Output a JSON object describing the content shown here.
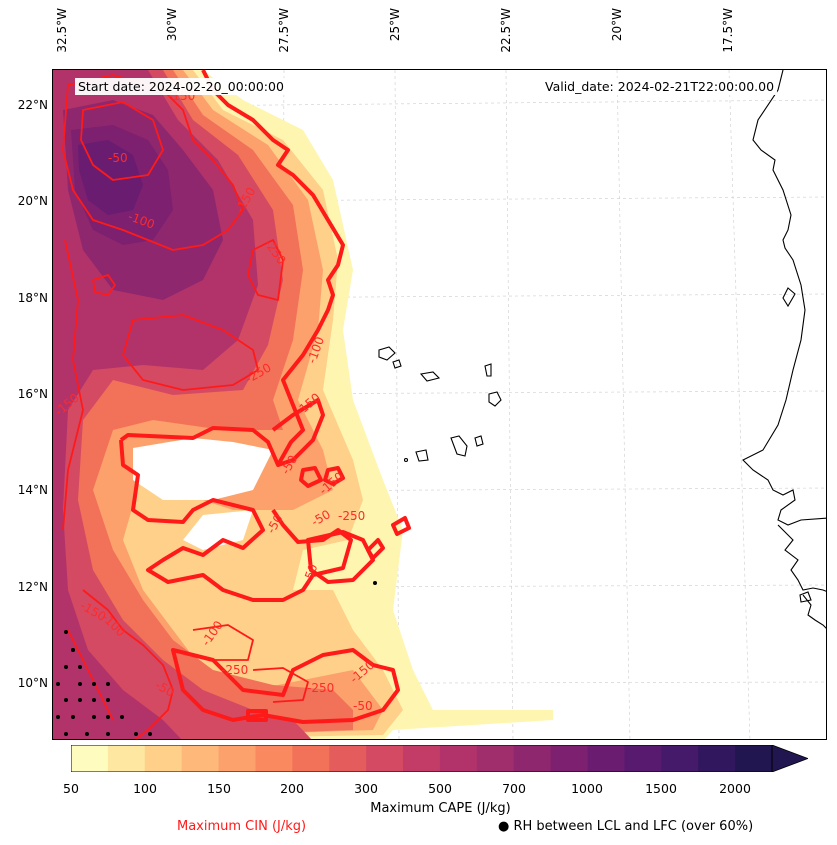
{
  "map": {
    "start_date_label": "Start date: 2024-02-20_00:00:00",
    "valid_date_label": "Valid_date: 2024-02-21T22:00:00.00",
    "longitude_labels": [
      "32.5°W",
      "30°W",
      "27.5°W",
      "25°W",
      "22.5°W",
      "20°W",
      "17.5°W"
    ],
    "latitude_labels": [
      "22°N",
      "20°N",
      "18°N",
      "16°N",
      "14°N",
      "12°N",
      "10°N"
    ],
    "cin_contour_labels": [
      "-150",
      "-50",
      "-150",
      "-100",
      "-250",
      "-250",
      "-100",
      "-150",
      "-150",
      "-50",
      "-50",
      "-150",
      "-50",
      "-250",
      "-50",
      "-150",
      "-100",
      "-100",
      "-50",
      "-250",
      "-150",
      "-250",
      "-50"
    ]
  },
  "colorbar": {
    "title": "Maximum CAPE (J/kg)",
    "ticks": [
      "50",
      "100",
      "150",
      "200",
      "300",
      "500",
      "700",
      "1000",
      "1500",
      "2000"
    ],
    "colors": [
      "#fefdbf",
      "#fee7a0",
      "#fed08a",
      "#feb97a",
      "#fca16c",
      "#fa8960",
      "#f27159",
      "#e55c5d",
      "#d44a62",
      "#c33b67",
      "#b2336a",
      "#a02d6c",
      "#8f276e",
      "#7c206f",
      "#6a1c70",
      "#581a6f",
      "#451a6a",
      "#31175e",
      "#221650"
    ]
  },
  "legend": {
    "cin_label": "Maximum CIN (J/kg)",
    "rh_label": "● RH between LCL and LFC (over 60%)"
  }
}
